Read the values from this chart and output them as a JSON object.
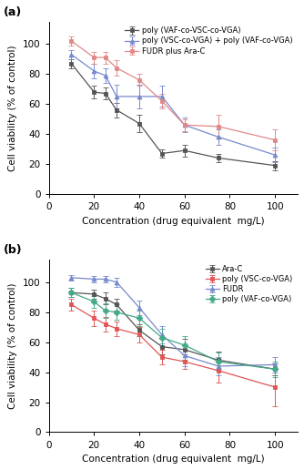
{
  "x": [
    10,
    20,
    25,
    30,
    40,
    50,
    60,
    75,
    100
  ],
  "panel_a": {
    "series": [
      {
        "label": "poly (VAF-co-VSC-co-VGA)",
        "color": "#555555",
        "marker": "s",
        "y": [
          87,
          68,
          67,
          56,
          47,
          27,
          29,
          24,
          19
        ],
        "yerr": [
          3,
          4,
          4,
          5,
          6,
          3,
          4,
          3,
          3
        ]
      },
      {
        "label": "poly (VSC-co-VGA) + poly (VAF-co-VGA)",
        "color": "#7788cc",
        "marker": "^",
        "y": [
          93,
          82,
          79,
          65,
          65,
          65,
          46,
          38,
          26
        ],
        "yerr": [
          3,
          5,
          5,
          8,
          8,
          7,
          5,
          5,
          5
        ]
      },
      {
        "label": "FUDR plus Ara-C",
        "color": "#e08888",
        "marker": "s",
        "y": [
          102,
          91,
          91,
          84,
          76,
          62,
          46,
          45,
          36
        ],
        "yerr": [
          3,
          4,
          4,
          5,
          4,
          5,
          4,
          8,
          7
        ]
      }
    ],
    "ylabel": "Cell viability (% of control)",
    "xlabel": "Concentration (drug equivalent  mg/L)",
    "panel_label": "(a)",
    "ylim": [
      0,
      115
    ],
    "yticks": [
      0,
      20,
      40,
      60,
      80,
      100
    ],
    "xlim": [
      0,
      110
    ],
    "xticks": [
      0,
      20,
      40,
      60,
      80,
      100
    ]
  },
  "panel_b": {
    "series": [
      {
        "label": "Ara-C",
        "color": "#555555",
        "marker": "s",
        "y": [
          93,
          92,
          89,
          85,
          68,
          57,
          55,
          48,
          42
        ],
        "yerr": [
          3,
          3,
          4,
          4,
          4,
          5,
          7,
          6,
          4
        ]
      },
      {
        "label": "poly (VSC-co-VGA)",
        "color": "#e05555",
        "marker": "s",
        "y": [
          85,
          76,
          72,
          69,
          65,
          50,
          47,
          41,
          30
        ],
        "yerr": [
          4,
          5,
          5,
          5,
          5,
          5,
          5,
          8,
          13
        ]
      },
      {
        "label": "FUDR",
        "color": "#7788cc",
        "marker": "^",
        "y": [
          103,
          102,
          102,
          100,
          83,
          65,
          51,
          44,
          45
        ],
        "yerr": [
          2,
          2,
          2,
          3,
          5,
          6,
          7,
          6,
          5
        ]
      },
      {
        "label": "poly (VAF-co-VGA)",
        "color": "#44aa88",
        "marker": "D",
        "y": [
          93,
          87,
          81,
          80,
          76,
          63,
          58,
          47,
          42
        ],
        "yerr": [
          3,
          4,
          5,
          5,
          5,
          6,
          6,
          6,
          5
        ]
      }
    ],
    "ylabel": "Cell viability (% of control)",
    "xlabel": "Concentration (drug equivalent  mg/L)",
    "panel_label": "(b)",
    "ylim": [
      0,
      115
    ],
    "yticks": [
      0,
      20,
      40,
      60,
      80,
      100
    ],
    "xlim": [
      0,
      110
    ],
    "xticks": [
      0,
      20,
      40,
      60,
      80,
      100
    ]
  }
}
